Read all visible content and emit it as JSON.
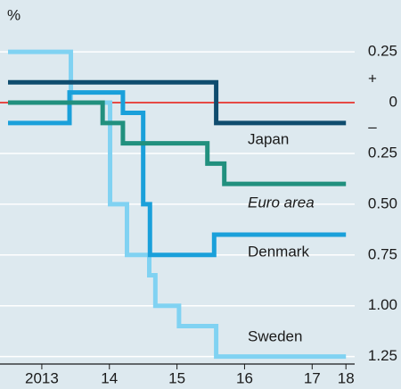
{
  "chart_data": {
    "type": "step",
    "y_unit_label": "%",
    "plus_sign": "+",
    "minus_sign": "–",
    "xlim": [
      2013,
      2018.05
    ],
    "xticks": [
      {
        "value": 2013.5,
        "label": "2013"
      },
      {
        "value": 2014.5,
        "label": "14"
      },
      {
        "value": 2015.5,
        "label": "15"
      },
      {
        "value": 2016.5,
        "label": "16"
      },
      {
        "value": 2017.5,
        "label": "17"
      },
      {
        "value": 2018,
        "label": "18"
      }
    ],
    "ylim": [
      -1.3,
      0.4
    ],
    "yticks": [
      0.25,
      0,
      {
        "value": -0.25,
        "label": "0.25"
      },
      {
        "value": -0.5,
        "label": "0.50"
      },
      {
        "value": -0.75,
        "label": "0.75"
      },
      {
        "value": -1.0,
        "label": "1.00"
      },
      {
        "value": -1.25,
        "label": "1.25"
      }
    ],
    "grid": true,
    "zero_line_color": "#e3120b",
    "series": [
      {
        "name": "Japan",
        "color": "#0f4c6e",
        "x": [
          2013,
          2016.08,
          2018
        ],
        "values": [
          0.1,
          -0.1,
          -0.1
        ]
      },
      {
        "name": "Euro area",
        "color": "#21907e",
        "x": [
          2013,
          2014.4,
          2014.7,
          2015.95,
          2016.2,
          2018
        ],
        "values": [
          0,
          -0.1,
          -0.2,
          -0.3,
          -0.4,
          -0.4
        ]
      },
      {
        "name": "Denmark",
        "color": "#1aa0da",
        "x": [
          2013,
          2013.91,
          2014.7,
          2015.0,
          2015.1,
          2016.05,
          2018
        ],
        "values": [
          -0.1,
          0.05,
          -0.05,
          -0.5,
          -0.75,
          -0.65,
          -0.65
        ]
      },
      {
        "name": "Sweden",
        "color": "#80d2f2",
        "x": [
          2013,
          2013.93,
          2014.51,
          2014.76,
          2015.09,
          2015.18,
          2015.53,
          2016.08,
          2018
        ],
        "values": [
          0.25,
          0,
          -0.5,
          -0.75,
          -0.85,
          -1.0,
          -1.1,
          -1.25,
          -1.25
        ]
      }
    ]
  }
}
